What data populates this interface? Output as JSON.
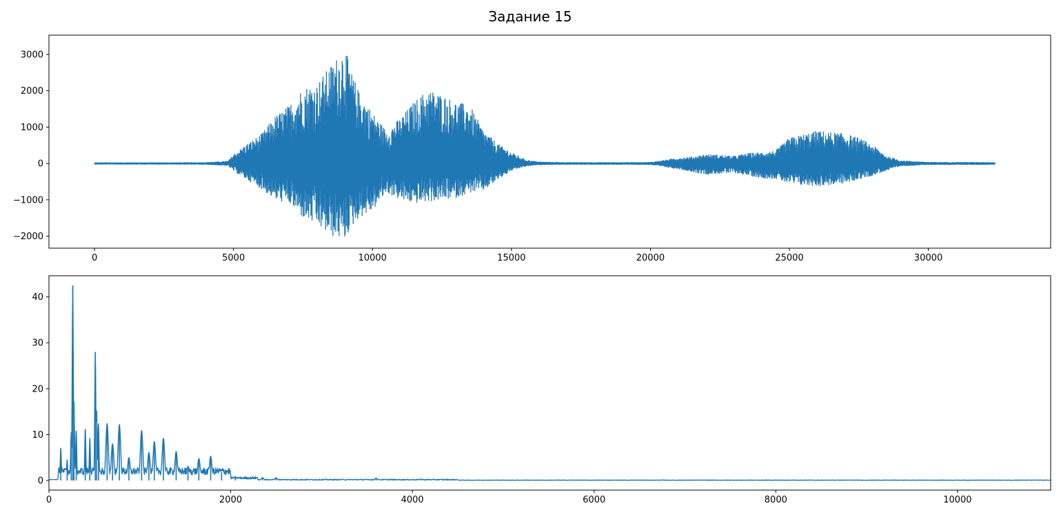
{
  "figure": {
    "title": "Задание 15"
  },
  "chart_data": [
    {
      "type": "line",
      "title": "",
      "xlabel": "",
      "ylabel": "",
      "xlim": [
        -1640,
        34400
      ],
      "ylim": [
        -2330,
        3530
      ],
      "xticks": [
        0,
        5000,
        10000,
        15000,
        20000,
        25000,
        30000
      ],
      "yticks": [
        -2000,
        -1000,
        0,
        1000,
        2000,
        3000
      ],
      "xtick_labels": [
        "0",
        "5000",
        "10000",
        "15000",
        "20000",
        "25000",
        "30000"
      ],
      "ytick_labels": [
        "−2000",
        "−1000",
        "0",
        "1000",
        "2000",
        "3000"
      ],
      "grid": false,
      "series": [
        {
          "color": "#1f77b4",
          "description_note": "",
          "x": [
            0,
            1000,
            2000,
            3000,
            4000,
            4800,
            5000,
            5500,
            6000,
            6500,
            7000,
            7500,
            8000,
            8500,
            8800,
            9000,
            9200,
            9500,
            10000,
            10500,
            11000,
            11500,
            12000,
            12500,
            13000,
            13500,
            14000,
            14500,
            15000,
            15500,
            16000,
            17000,
            18000,
            19000,
            20000,
            21000,
            21500,
            22000,
            22500,
            23000,
            23500,
            24000,
            24500,
            25000,
            25500,
            26000,
            26500,
            27000,
            27500,
            28000,
            28500,
            29000,
            30000,
            31000,
            32000,
            32400
          ],
          "envelope_upper": [
            20,
            20,
            20,
            20,
            25,
            60,
            250,
            550,
            800,
            1300,
            1600,
            2100,
            2200,
            2700,
            3000,
            3250,
            2600,
            2000,
            1400,
            900,
            1250,
            1700,
            2050,
            1900,
            1700,
            1600,
            900,
            550,
            300,
            100,
            40,
            25,
            25,
            25,
            30,
            150,
            180,
            250,
            230,
            200,
            280,
            300,
            350,
            700,
            800,
            900,
            860,
            820,
            700,
            500,
            200,
            80,
            30,
            30,
            30,
            25
          ],
          "envelope_lower": [
            -20,
            -20,
            -20,
            -20,
            -25,
            -60,
            -200,
            -450,
            -700,
            -1000,
            -1100,
            -1500,
            -1700,
            -2000,
            -2050,
            -2100,
            -1800,
            -1500,
            -1300,
            -800,
            -1000,
            -1100,
            -1050,
            -1000,
            -950,
            -800,
            -750,
            -450,
            -200,
            -80,
            -35,
            -25,
            -25,
            -25,
            -30,
            -150,
            -230,
            -300,
            -280,
            -250,
            -330,
            -400,
            -420,
            -550,
            -600,
            -620,
            -590,
            -550,
            -430,
            -330,
            -200,
            -70,
            -30,
            -30,
            -30,
            -25
          ]
        }
      ]
    },
    {
      "type": "line",
      "title": "",
      "xlabel": "",
      "ylabel": "",
      "xlim": [
        0,
        11025
      ],
      "ylim": [
        -2.1,
        44.6
      ],
      "xticks": [
        0,
        2000,
        4000,
        6000,
        8000,
        10000
      ],
      "yticks": [
        0,
        10,
        20,
        30,
        40
      ],
      "xtick_labels": [
        "0",
        "2000",
        "4000",
        "6000",
        "8000",
        "10000"
      ],
      "ytick_labels": [
        "0",
        "10",
        "20",
        "30",
        "40"
      ],
      "grid": false,
      "series": [
        {
          "color": "#1f77b4",
          "peaks": [
            {
              "x": 130,
              "y": 7.1
            },
            {
              "x": 200,
              "y": 4.5
            },
            {
              "x": 245,
              "y": 10.5
            },
            {
              "x": 262,
              "y": 42.5
            },
            {
              "x": 275,
              "y": 17.2
            },
            {
              "x": 300,
              "y": 10.8
            },
            {
              "x": 400,
              "y": 11.2
            },
            {
              "x": 450,
              "y": 9.2
            },
            {
              "x": 510,
              "y": 28.0
            },
            {
              "x": 525,
              "y": 15.2
            },
            {
              "x": 545,
              "y": 12.4
            },
            {
              "x": 640,
              "y": 12.4
            },
            {
              "x": 700,
              "y": 8.0
            },
            {
              "x": 775,
              "y": 12.2
            },
            {
              "x": 880,
              "y": 5.0
            },
            {
              "x": 1020,
              "y": 10.9
            },
            {
              "x": 1100,
              "y": 6.1
            },
            {
              "x": 1160,
              "y": 8.5
            },
            {
              "x": 1260,
              "y": 9.2
            },
            {
              "x": 1400,
              "y": 6.3
            },
            {
              "x": 1530,
              "y": 3.1
            },
            {
              "x": 1650,
              "y": 4.8
            },
            {
              "x": 1780,
              "y": 5.3
            },
            {
              "x": 1900,
              "y": 1.8
            },
            {
              "x": 2050,
              "y": 0.8
            },
            {
              "x": 2350,
              "y": 0.6
            },
            {
              "x": 2500,
              "y": 0.6
            },
            {
              "x": 3600,
              "y": 0.5
            },
            {
              "x": 4100,
              "y": 0.3
            }
          ]
        }
      ]
    }
  ]
}
